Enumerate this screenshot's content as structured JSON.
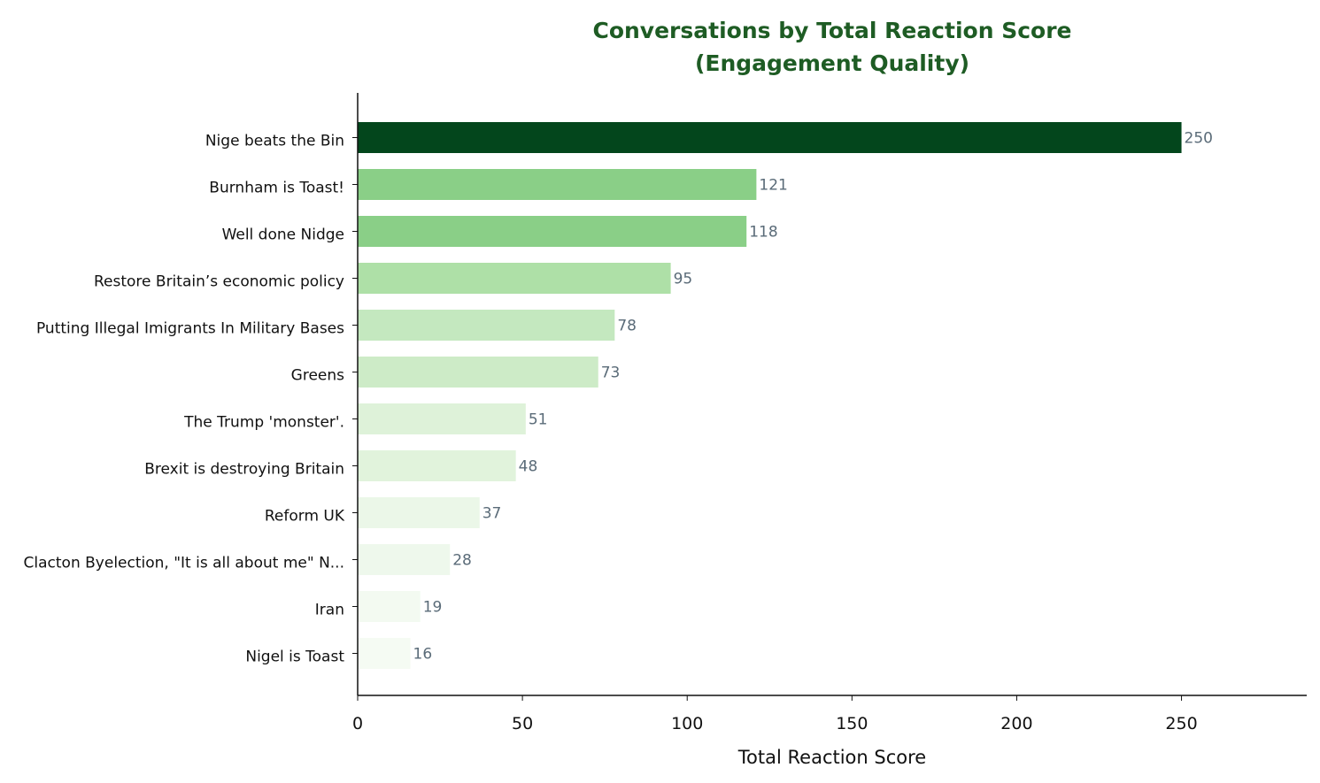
{
  "chart_data": {
    "type": "bar",
    "orientation": "horizontal",
    "title": [
      "Conversations by Total Reaction Score",
      "(Engagement Quality)"
    ],
    "xlabel": "Total Reaction Score",
    "ylabel": "",
    "xlim": [
      0,
      288
    ],
    "xticks": [
      0,
      50,
      100,
      150,
      200,
      250
    ],
    "categories": [
      "Nige beats the Bin",
      "Burnham is Toast!",
      "Well done Nidge",
      "Restore Britain’s economic policy",
      "Putting Illegal Imigrants In Military Bases",
      "Greens",
      "The Trump 'monster'.",
      "Brexit is destroying Britain",
      "Reform UK",
      "Clacton Byelection, \"It is all about me\" N...",
      "Iran",
      "Nigel is Toast"
    ],
    "values": [
      250,
      121,
      118,
      95,
      78,
      73,
      51,
      48,
      37,
      28,
      19,
      16
    ],
    "bar_colors": [
      "#03461c",
      "#8acf87",
      "#8acf87",
      "#aee0a7",
      "#c4e8bf",
      "#cdebc7",
      "#def2d9",
      "#e1f3dc",
      "#ebf7e8",
      "#eef8ec",
      "#f3faf1",
      "#f5fbf3"
    ],
    "grid": false,
    "legend": "none",
    "colors": {
      "title": "#1e5c24",
      "value_label": "#5a6b78",
      "axis": "#111111"
    }
  }
}
